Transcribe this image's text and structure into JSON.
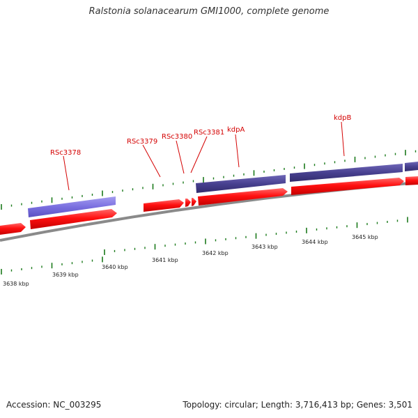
{
  "title": "Ralstonia solanacearum GMI1000, complete genome",
  "footer": {
    "accession": "Accession: NC_003295",
    "summary": "Topology: circular; Length: 3,716,413 bp; Genes: 3,501"
  },
  "colors": {
    "gene_forward": "#ff1010",
    "cds_light": "#7a6fe0",
    "cds_dark": "#47408f",
    "tick": "#1b7a1b",
    "backbone": "#8a8a8a",
    "label": "#d40000",
    "kbp_label": "#222222"
  },
  "genome_map": {
    "kbp_labels": [
      "3638 kbp",
      "3639 kbp",
      "3640 kbp",
      "3641 kbp",
      "3642 kbp",
      "3643 kbp",
      "3644 kbp",
      "3645 kbp"
    ],
    "gene_labels": [
      "RSc3378",
      "RSc3379",
      "RSc3380",
      "RSc3381",
      "kdpA",
      "kdpB"
    ]
  }
}
